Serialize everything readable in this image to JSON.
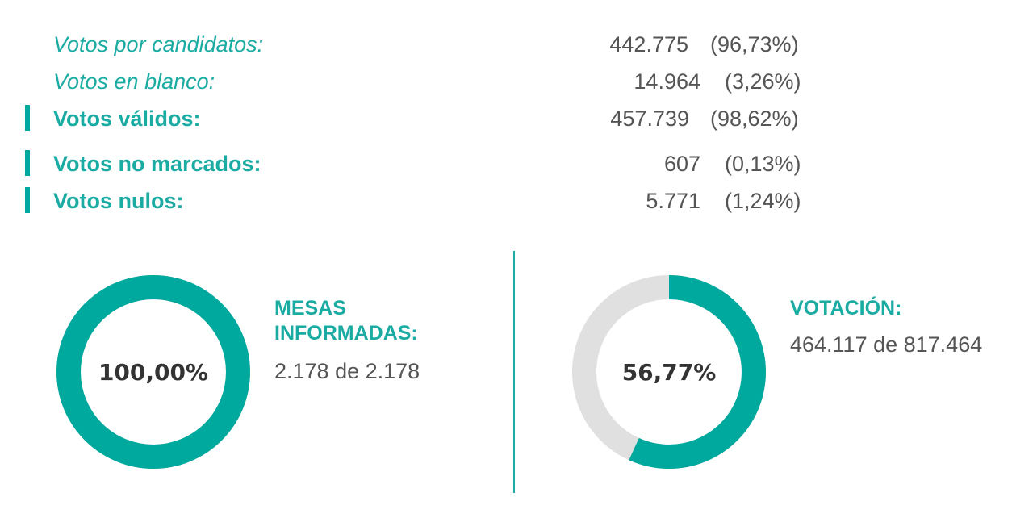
{
  "colors": {
    "accent": "#00a99d",
    "track": "#e0e0e0",
    "text": "#555555"
  },
  "votes": {
    "candidates": {
      "label": "Votos por candidatos:",
      "count": "442.775",
      "percent": "(96,73%)"
    },
    "blank": {
      "label": "Votos en blanco:",
      "count": "14.964",
      "percent": "(3,26%)"
    },
    "valid": {
      "label": "Votos válidos:",
      "count": "457.739",
      "percent": "(98,62%)"
    },
    "unmarked": {
      "label": "Votos no marcados:",
      "count": "607",
      "percent": "(0,13%)"
    },
    "null": {
      "label": "Votos nulos:",
      "count": "5.771",
      "percent": "(1,24%)"
    }
  },
  "mesas": {
    "percent_label": "100,00%",
    "fraction": 1.0,
    "title_line1": "MESAS",
    "title_line2": "INFORMADAS:",
    "value": "2.178 de 2.178"
  },
  "votacion": {
    "percent_label": "56,77%",
    "fraction": 0.5677,
    "title": "VOTACIÓN:",
    "value": "464.117 de 817.464"
  }
}
